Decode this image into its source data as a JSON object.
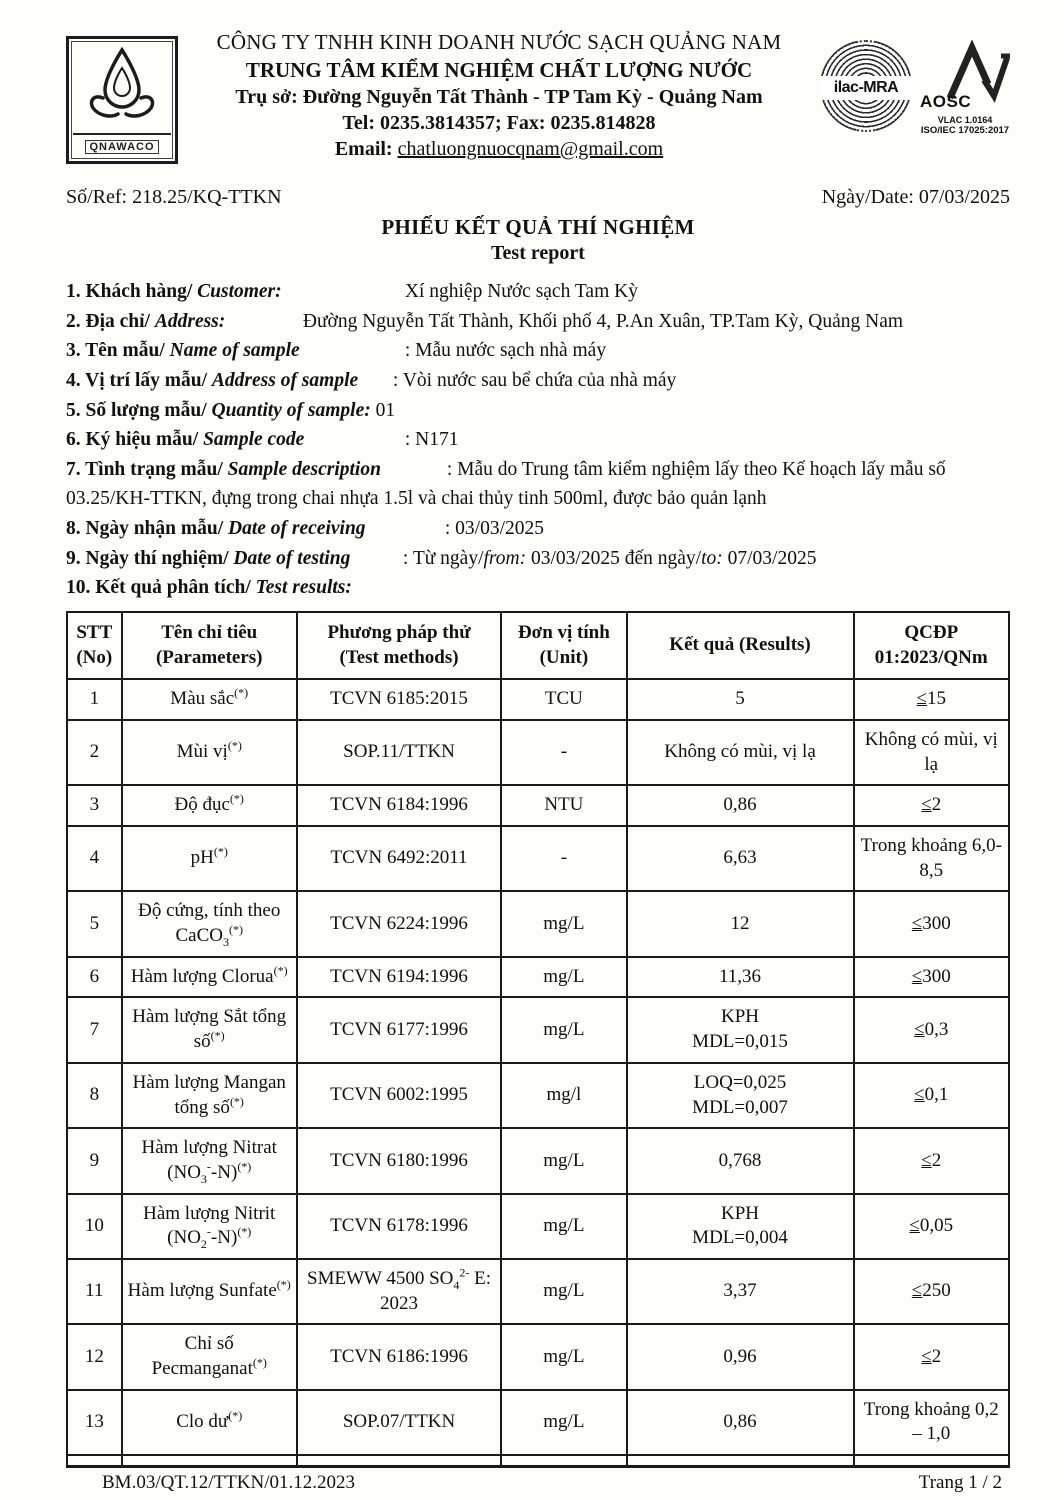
{
  "header": {
    "logo_text": "QNAWACO",
    "company_line1": "CÔNG TY TNHH KINH DOANH NƯỚC SẠCH QUẢNG NAM",
    "company_line2": "TRUNG TÂM KIỂM NGHIỆM CHẤT LƯỢNG NƯỚC",
    "address_line": "Trụ sở: Đường Nguyễn Tất Thành - TP Tam Kỳ -  Quảng Nam",
    "tel_line": "Tel: 0235.3814357; Fax: 0235.814828",
    "email_label": "Email:",
    "email_value": "chatluongnuocqnam@gmail.com",
    "accreditation": {
      "ilac": "ilac-MRA",
      "aosc": "AOSC",
      "vlac": "VLAC 1.0164",
      "iso": "ISO/IEC 17025:2017"
    }
  },
  "meta": {
    "ref": "Số/Ref: 218.25/KQ-TTKN",
    "date": "Ngày/Date: 07/03/2025"
  },
  "title": {
    "vi": "PHIẾU KẾT QUẢ THÍ NGHIỆM",
    "en": "Test report"
  },
  "info_items": [
    {
      "label_vi": "1. Khách hàng/",
      "label_en": "Customer:",
      "value": "Xí nghiệp Nước sạch Tam Kỳ"
    },
    {
      "label_vi": "2. Địa chỉ/",
      "label_en": "Address:",
      "value": "Đường Nguyễn Tất Thành, Khối phố 4, P.An Xuân, TP.Tam Kỳ, Quảng Nam"
    },
    {
      "label_vi": "3. Tên mẫu/",
      "label_en": "Name of sample",
      "value": ": Mẫu nước sạch nhà máy"
    },
    {
      "label_vi": "4. Vị trí lấy mẫu/",
      "label_en": "Address of sample",
      "value": ": Vòi nước sau bể chứa của nhà máy"
    },
    {
      "label_vi": "5. Số lượng mẫu/",
      "label_en": "Quantity of sample:",
      "value": "01"
    },
    {
      "label_vi": "6. Ký hiệu mẫu/",
      "label_en": "Sample code",
      "value": ": N171"
    },
    {
      "label_vi": "7. Tình trạng mẫu/",
      "label_en": "Sample description",
      "value": ": Mẫu do Trung tâm kiểm nghiệm lấy theo Kế hoạch lấy mẫu số 03.25/KH-TTKN, đựng trong chai nhựa 1.5l và chai thủy tinh 500ml, được bảo quản lạnh"
    },
    {
      "label_vi": "8. Ngày nhận mẫu/",
      "label_en": "Date of receiving",
      "value": ": 03/03/2025"
    },
    {
      "label_vi": "9. Ngày thí nghiệm/",
      "label_en": "Date of testing",
      "value": ": Từ ngày/<i>from:</i> 03/03/2025  đến ngày/<i>to:</i> 07/03/2025"
    },
    {
      "label_vi": "10. Kết quả phân tích/",
      "label_en": "Test results:",
      "value": ""
    }
  ],
  "table": {
    "col_headers": [
      "STT<br>(No)",
      "Tên chỉ tiêu<br>(Parameters)",
      "Phương pháp thử<br>(Test methods)",
      "Đơn vị tính<br>(Unit)",
      "Kết quả (Results)",
      "QCĐP<br>01:2023/QNm"
    ],
    "rows": [
      {
        "no": "1",
        "param": "Màu sắc<sup>(*)</sup>",
        "method": "TCVN 6185:2015",
        "unit": "TCU",
        "result": "5",
        "limit": "<u>≤</u>15"
      },
      {
        "no": "2",
        "param": "Mùi vị<sup>(*)</sup>",
        "method": "SOP.11/TTKN",
        "unit": "-",
        "result": "Không có mùi, vị lạ",
        "limit": "Không có mùi, vị lạ"
      },
      {
        "no": "3",
        "param": "Độ đục<sup>(*)</sup>",
        "method": "TCVN 6184:1996",
        "unit": "NTU",
        "result": "0,86",
        "limit": "<u>≤</u>2"
      },
      {
        "no": "4",
        "param": "pH<sup>(*)</sup>",
        "method": "TCVN 6492:2011",
        "unit": "-",
        "result": "6,63",
        "limit": "Trong khoảng 6,0-8,5"
      },
      {
        "no": "5",
        "param": "Độ cứng, tính theo CaCO<sub>3</sub><sup>(*)</sup>",
        "method": "TCVN 6224:1996",
        "unit": "mg/L",
        "result": "12",
        "limit": "<u>≤</u>300"
      },
      {
        "no": "6",
        "param": "Hàm lượng Clorua<sup>(*)</sup>",
        "method": "TCVN 6194:1996",
        "unit": "mg/L",
        "result": "11,36",
        "limit": "<u>≤</u>300"
      },
      {
        "no": "7",
        "param": "Hàm lượng Sắt tổng số<sup>(*)</sup>",
        "method": "TCVN 6177:1996",
        "unit": "mg/L",
        "result": "KPH<br>MDL=0,015",
        "limit": "<u>≤</u>0,3"
      },
      {
        "no": "8",
        "param": "Hàm lượng Mangan tổng số<sup>(*)</sup>",
        "method": "TCVN 6002:1995",
        "unit": "mg/l",
        "result": "LOQ=0,025<br>MDL=0,007",
        "limit": "<u>≤</u>0,1"
      },
      {
        "no": "9",
        "param": "Hàm lượng Nitrat (NO<sub>3</sub><sup>-</sup>-N)<sup>(*)</sup>",
        "method": "TCVN 6180:1996",
        "unit": "mg/L",
        "result": "0,768",
        "limit": "<u>≤</u>2"
      },
      {
        "no": "10",
        "param": "Hàm lượng Nitrit (NO<sub>2</sub><sup>-</sup>-N)<sup>(*)</sup>",
        "method": "TCVN 6178:1996",
        "unit": "mg/L",
        "result": "KPH<br>MDL=0,004",
        "limit": "<u>≤</u>0,05"
      },
      {
        "no": "11",
        "param": "Hàm lượng Sunfate<sup>(*)</sup>",
        "method": "SMEWW 4500 SO<sub>4</sub><sup>2-</sup> E: 2023",
        "unit": "mg/L",
        "result": "3,37",
        "limit": "<u>≤</u>250"
      },
      {
        "no": "12",
        "param": "Chỉ số Pecmanganat<sup>(*)</sup>",
        "method": "TCVN 6186:1996",
        "unit": "mg/L",
        "result": "0,96",
        "limit": "<u>≤</u>2"
      },
      {
        "no": "13",
        "param": "Clo dư<sup>(*)</sup>",
        "method": "SOP.07/TTKN",
        "unit": "mg/L",
        "result": "0,86",
        "limit": "Trong khoảng 0,2 – 1,0"
      }
    ]
  },
  "footer": {
    "left": "BM.03/QT.12/TTKN/01.12.2023",
    "right": "Trang 1 / 2"
  }
}
